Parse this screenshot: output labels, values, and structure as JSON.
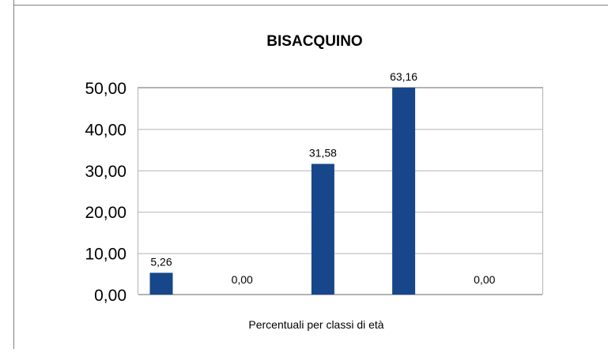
{
  "chart_data": {
    "type": "bar",
    "title": "BISACQUINO",
    "xlabel": "Percentuali per classi di età",
    "ylabel": "",
    "categories": [
      "",
      "",
      "",
      "",
      ""
    ],
    "values": [
      5.26,
      0.0,
      31.58,
      63.16,
      0.0
    ],
    "data_labels": [
      "5,26",
      "0,00",
      "31,58",
      "63,16",
      "0,00"
    ],
    "ylim": [
      0,
      50
    ],
    "yticks": [
      "0,00",
      "10,00",
      "20,00",
      "30,00",
      "40,00",
      "50,00"
    ],
    "grid": true,
    "legend": "none",
    "bar_color": "#17478a"
  }
}
